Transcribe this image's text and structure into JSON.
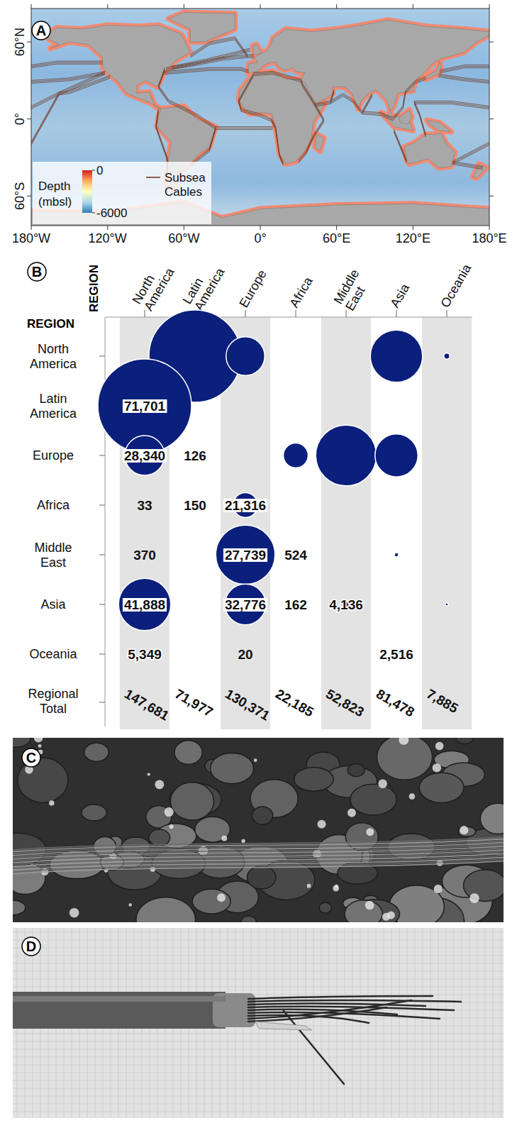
{
  "chart_data": [
    {
      "type": "map",
      "letter": "A",
      "xlim": [
        -180,
        180
      ],
      "xticks": [
        {
          "value": -180,
          "label": "180°W"
        },
        {
          "value": -120,
          "label": "120°W"
        },
        {
          "value": -60,
          "label": "60°W"
        },
        {
          "value": 0,
          "label": "0°"
        },
        {
          "value": 60,
          "label": "60°E"
        },
        {
          "value": 120,
          "label": "120°E"
        },
        {
          "value": 180,
          "label": "180°E"
        }
      ],
      "ylim": [
        -83,
        86
      ],
      "yticks": [
        {
          "value": 60,
          "label": "60°N"
        },
        {
          "value": 0,
          "label": "0°"
        },
        {
          "value": -60,
          "label": "60°S"
        }
      ],
      "colorbar": {
        "title": [
          "Depth",
          "(mbsl)"
        ],
        "lim": [
          -6000,
          0
        ],
        "ticks": [
          0,
          -6000
        ]
      },
      "legend": "bottom-left",
      "series": [
        {
          "name": "Subsea Cables",
          "color": "#6b2f15"
        }
      ]
    },
    {
      "type": "bubble_matrix",
      "letter": "B",
      "column_title": "REGION",
      "row_title": "REGION",
      "categories": [
        "North America",
        "Latin America",
        "Europe",
        "Africa",
        "Middle East",
        "Asia",
        "Oceania"
      ],
      "color": "#0b1f7c",
      "data_labels": true,
      "cells": [
        {
          "row": "Latin America",
          "col": "North America",
          "value": 71701,
          "label": "71,701"
        },
        {
          "row": "Europe",
          "col": "North America",
          "value": 28340,
          "label": "28,340"
        },
        {
          "row": "Europe",
          "col": "Latin America",
          "value": 126
        },
        {
          "row": "Africa",
          "col": "North America",
          "value": 33
        },
        {
          "row": "Africa",
          "col": "Latin America",
          "value": 150
        },
        {
          "row": "Africa",
          "col": "Europe",
          "value": 21316,
          "label": "21,316"
        },
        {
          "row": "Middle East",
          "col": "North America",
          "value": 370
        },
        {
          "row": "Middle East",
          "col": "Europe",
          "value": 27739,
          "label": "27,739"
        },
        {
          "row": "Middle East",
          "col": "Africa",
          "value": 524
        },
        {
          "row": "Asia",
          "col": "North America",
          "value": 41888,
          "label": "41,888"
        },
        {
          "row": "Asia",
          "col": "Europe",
          "value": 32776,
          "label": "32,776"
        },
        {
          "row": "Asia",
          "col": "Africa",
          "value": 162
        },
        {
          "row": "Asia",
          "col": "Middle East",
          "value": 4136,
          "label": "4,136"
        },
        {
          "row": "Oceania",
          "col": "North America",
          "value": 5349,
          "label": "5,349"
        },
        {
          "row": "Oceania",
          "col": "Europe",
          "value": 20
        },
        {
          "row": "Oceania",
          "col": "Asia",
          "value": 2516,
          "label": "2,516"
        }
      ],
      "size_max": 100,
      "bubbles": [
        {
          "row": "North America",
          "col": "Latin America",
          "size": 97
        },
        {
          "row": "North America",
          "col": "Europe",
          "size": 17
        },
        {
          "row": "North America",
          "col": "Asia",
          "size": 31
        },
        {
          "row": "North America",
          "col": "Oceania",
          "size": 0.4
        },
        {
          "row": "Europe",
          "col": "Africa",
          "size": 7
        },
        {
          "row": "Europe",
          "col": "Middle East",
          "size": 42
        },
        {
          "row": "Europe",
          "col": "Asia",
          "size": 21
        },
        {
          "row": "Middle East",
          "col": "Asia",
          "size": 0.2
        },
        {
          "row": "Asia",
          "col": "Oceania",
          "size": 0.1
        },
        {
          "row": "Latin America",
          "col": "North America",
          "size": 100
        },
        {
          "row": "Europe",
          "col": "North America",
          "size": 18
        },
        {
          "row": "Africa",
          "col": "Europe",
          "size": 7
        },
        {
          "row": "Middle East",
          "col": "Europe",
          "size": 40
        },
        {
          "row": "Asia",
          "col": "North America",
          "size": 31
        },
        {
          "row": "Asia",
          "col": "Europe",
          "size": 19
        },
        {
          "row": "Asia",
          "col": "Middle East",
          "size": 0.4
        },
        {
          "row": "Oceania",
          "col": "North America",
          "size": 0.4
        }
      ],
      "totals_label": "Regional Total",
      "totals": [
        {
          "value": 147681,
          "label": "147,681"
        },
        {
          "value": 71977,
          "label": "71,977"
        },
        {
          "value": 130371,
          "label": "130,371"
        },
        {
          "value": 22185,
          "label": "22,185"
        },
        {
          "value": 52823,
          "label": "52,823"
        },
        {
          "value": 81478,
          "label": "81,478"
        },
        {
          "value": 7885,
          "label": "7,885"
        }
      ]
    }
  ],
  "photos": [
    {
      "letter": "C"
    },
    {
      "letter": "D"
    }
  ]
}
